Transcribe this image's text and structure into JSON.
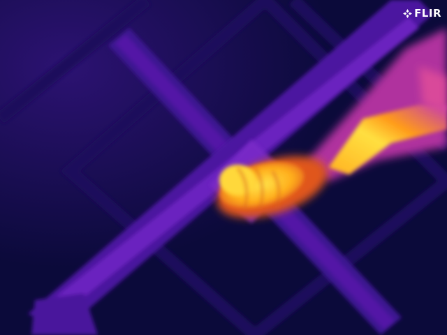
{
  "image": {
    "kind": "thermal-camera-frame",
    "palette": "ironbow",
    "colors": {
      "cold": "#0b0a3a",
      "cool": "#2a0f7a",
      "mid": "#6a18b8",
      "warm": "#c83ab4",
      "hot": "#ff9a10",
      "hottest": "#ffe84a"
    }
  },
  "branding": {
    "logo_text": "FLIR",
    "logo_icon": "flir-snowflake-icon"
  }
}
